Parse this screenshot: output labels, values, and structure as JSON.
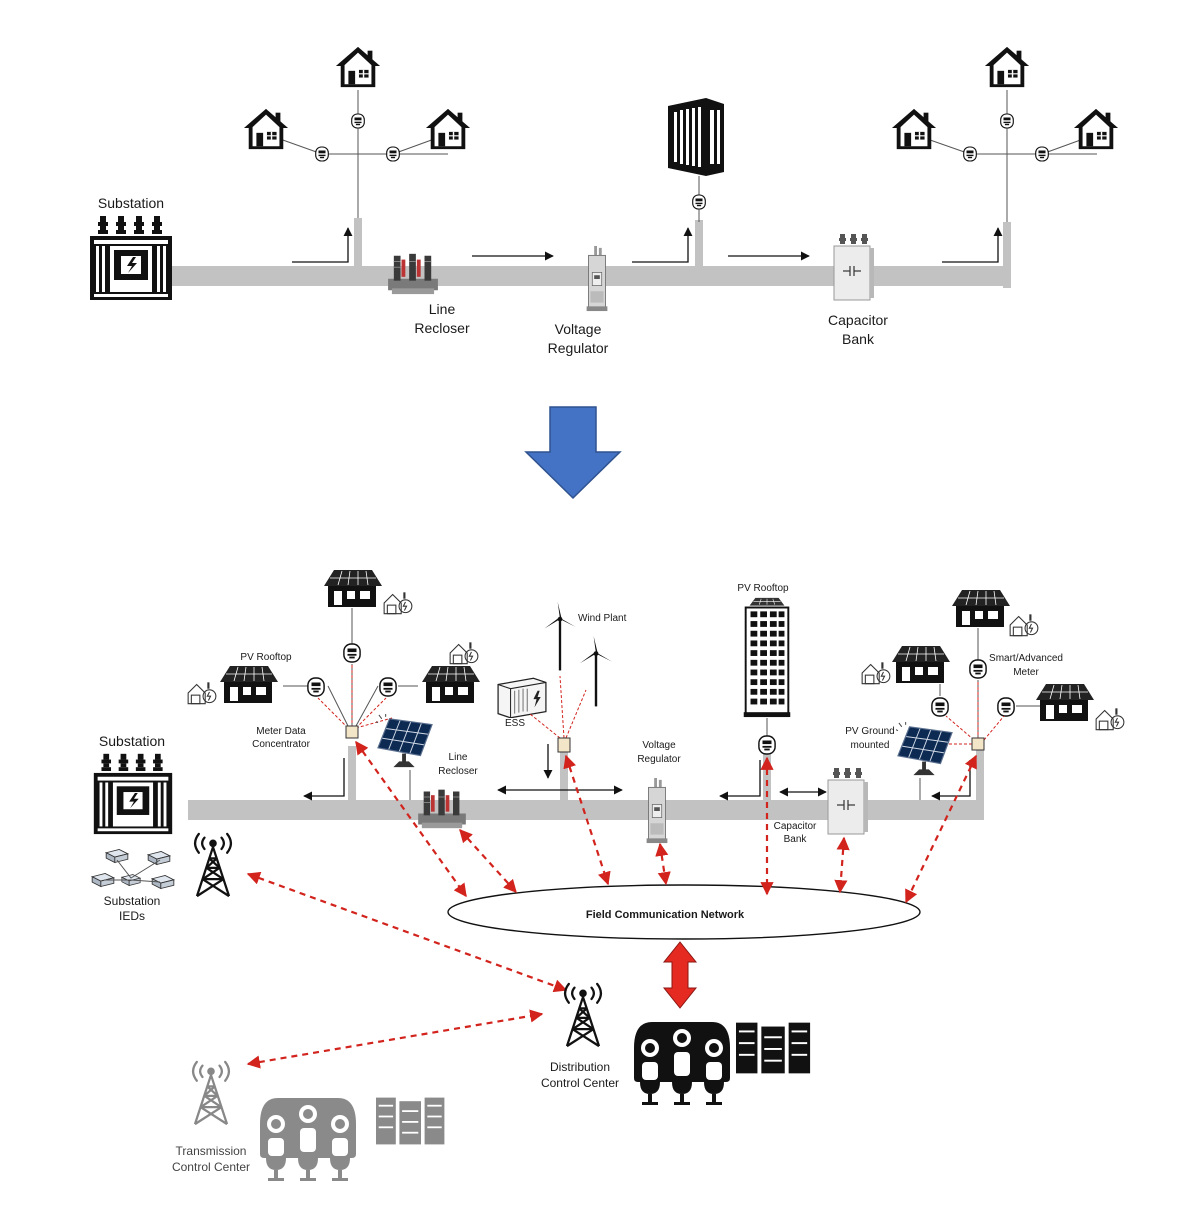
{
  "top_diagram": {
    "substation_label": "Substation",
    "line_recloser_label": [
      "Line",
      "Recloser"
    ],
    "voltage_regulator_label": [
      "Voltage",
      "Regulator"
    ],
    "capacitor_bank_label": [
      "Capacitor",
      "Bank"
    ]
  },
  "transition_arrow": {
    "color": "#4472c4"
  },
  "bottom_diagram": {
    "substation_label": "Substation",
    "substation_ieds_label": [
      "Substation",
      "IEDs"
    ],
    "pv_rooftop_left_label": "PV Rooftop",
    "meter_data_concentrator_label": [
      "Meter Data",
      "Concentrator"
    ],
    "line_recloser_label": [
      "Line",
      "Recloser"
    ],
    "wind_plant_label": "Wind Plant",
    "ess_label": "ESS",
    "voltage_regulator_label": [
      "Voltage",
      "Regulator"
    ],
    "pv_rooftop_building_label": "PV Rooftop",
    "capacitor_bank_label": [
      "Capacitor",
      "Bank"
    ],
    "pv_ground_label": [
      "PV Ground",
      "mounted"
    ],
    "smart_meter_label": [
      "Smart/Advanced",
      "Meter"
    ],
    "field_network_label": "Field Communication Network",
    "distribution_center_label": [
      "Distribution",
      "Control Center"
    ],
    "transmission_center_label": [
      "Transmission",
      "Control Center"
    ]
  },
  "colors": {
    "feeder": "#c2c2c2",
    "comm_link": "#d2231d",
    "arrow_fill": "#4472c4"
  },
  "icons": [
    "substation-transformer-icon",
    "house-icon",
    "smart-meter-icon",
    "building-icon",
    "recloser-icon",
    "voltage-regulator-icon",
    "capacitor-bank-icon",
    "solar-panel-icon",
    "wind-turbine-icon",
    "ess-icon",
    "radio-tower-icon",
    "people-group-icon",
    "server-rack-icon",
    "ev-charger-icon",
    "ied-device-icon"
  ]
}
